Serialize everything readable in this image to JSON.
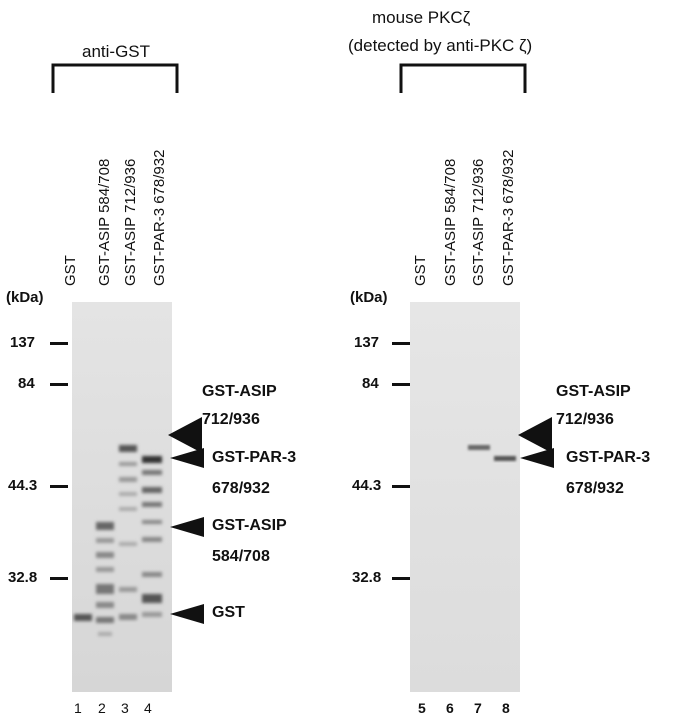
{
  "left_panel": {
    "title": "anti-GST",
    "lanes": [
      "GST",
      "GST-ASIP 584/708",
      "GST-ASIP 712/936",
      "GST-PAR-3 678/932"
    ],
    "unit_label": "(kDa)",
    "markers": [
      "137",
      "84",
      "44.3",
      "32.8"
    ],
    "annotations": [
      {
        "line1": "GST-ASIP",
        "line2": "712/936"
      },
      {
        "line1": "GST-PAR-3",
        "line2": "678/932"
      },
      {
        "line1": "GST-ASIP",
        "line2": "584/708"
      },
      {
        "line1": "GST",
        "line2": ""
      }
    ],
    "lane_numbers": [
      "1",
      "2",
      "3",
      "4"
    ]
  },
  "right_panel": {
    "title_line1": "mouse PKCζ",
    "title_line2": "(detected by anti-PKC ζ)",
    "lanes": [
      "GST",
      "GST-ASIP 584/708",
      "GST-ASIP 712/936",
      "GST-PAR-3 678/932"
    ],
    "unit_label": "(kDa)",
    "markers": [
      "137",
      "84",
      "44.3",
      "32.8"
    ],
    "annotations": [
      {
        "line1": "GST-ASIP",
        "line2": "712/936"
      },
      {
        "line1": "GST-PAR-3",
        "line2": "678/932"
      }
    ],
    "lane_numbers": [
      "5",
      "6",
      "7",
      "8"
    ]
  }
}
